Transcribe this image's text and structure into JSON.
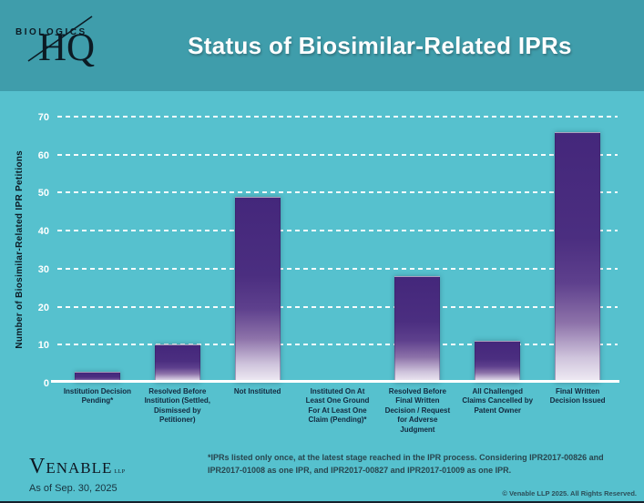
{
  "header": {
    "logo_biologics": "BIOLOGICS",
    "logo_hq": "HQ",
    "title": "Status of Biosimilar-Related IPRs"
  },
  "chart_data": {
    "type": "bar",
    "title": "Status of Biosimilar-Related IPRs",
    "xlabel": "",
    "ylabel": "Number of Biosimilar-Related IPR Petitions",
    "ylim": [
      0,
      70
    ],
    "yticks": [
      0,
      10,
      20,
      30,
      40,
      50,
      60,
      70
    ],
    "grid": "horizontal-white-dashed",
    "legend_position": "none",
    "categories": [
      "Institution Decision Pending*",
      "Resolved Before Institution (Settled, Dismissed by Petitioner)",
      "Not Instituted",
      "Instituted On At Least One Ground For At Least One Claim (Pending)*",
      "Resolved Before Final Written Decision / Request for Adverse Judgment",
      "All Challenged Claims Cancelled by Patent Owner",
      "Final Written Decision Issued"
    ],
    "values": [
      3,
      10,
      49,
      0,
      28,
      11,
      66
    ],
    "bar_gradient_top": "#44277b",
    "bar_gradient_bottom": "#f1edf5"
  },
  "footer": {
    "venable_v": "V",
    "venable_enable": "ENABLE",
    "venable_llp": "LLP",
    "as_of": "As of Sep. 30, 2025",
    "footnote": "*IPRs listed only once, at the latest stage reached in the IPR process.  Considering IPR2017-00826 and IPR2017-01008 as one IPR, and IPR2017-00827 and IPR2017-01009 as one IPR.",
    "copyright": "© Venable LLP 2025. All Rights Reserved."
  },
  "colors": {
    "header_bg": "#3f9dab",
    "body_bg": "#56c1ce",
    "title_text": "#ffffff",
    "axis_line": "#ffffff",
    "ytick_text": "#ffffff",
    "category_text": "#13293f",
    "bar_top": "#44277b",
    "bar_bottom": "#f1edf5"
  }
}
